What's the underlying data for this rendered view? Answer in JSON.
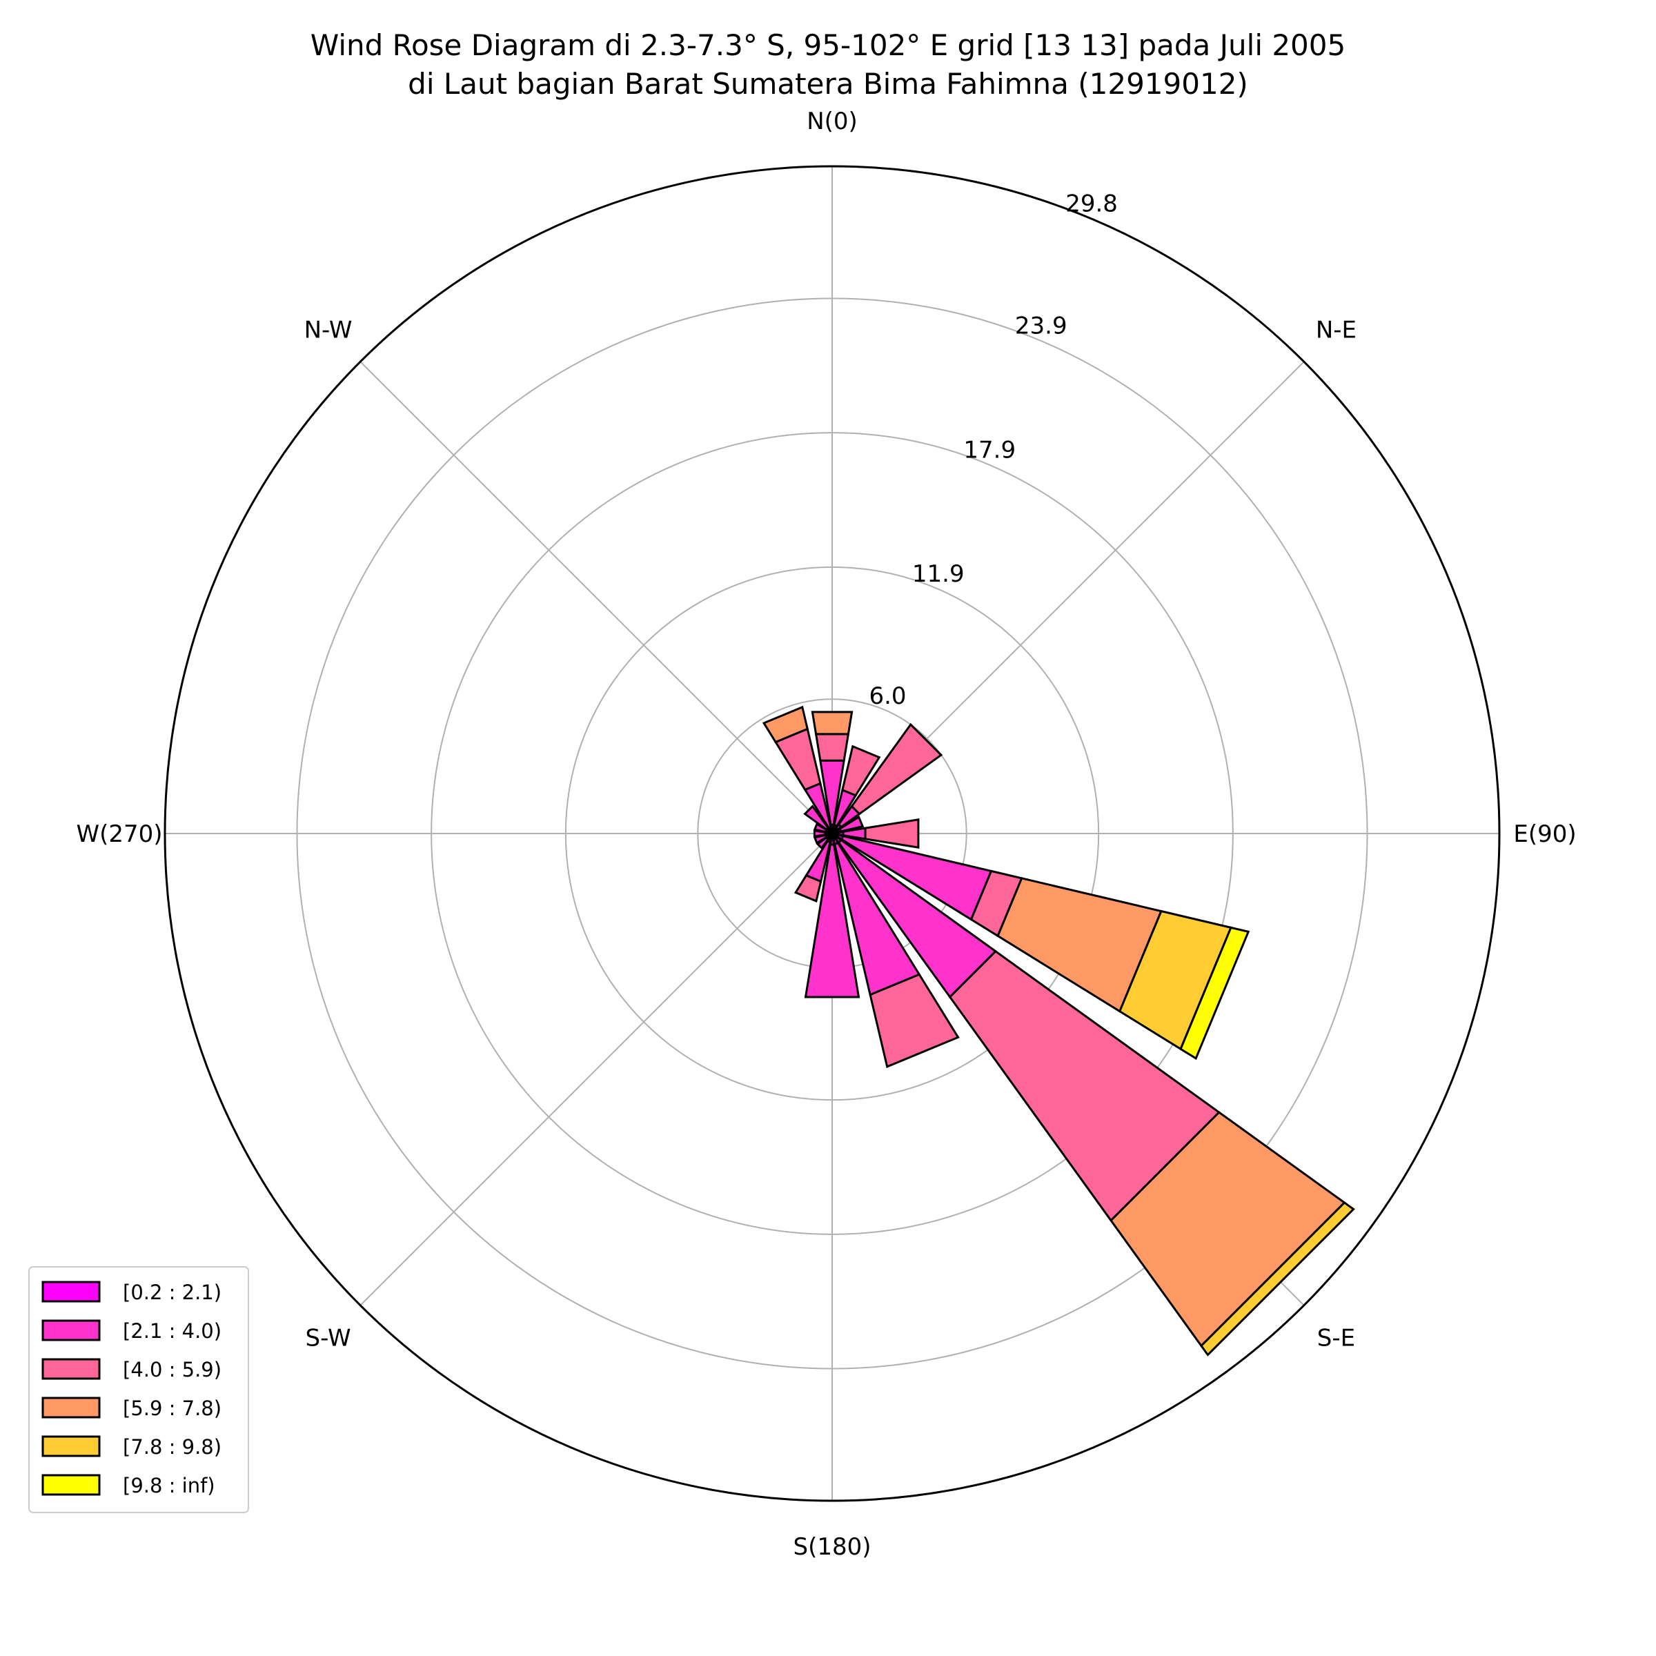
{
  "chart_data": {
    "type": "windrose",
    "title": "Wind Rose Diagram di 2.3-7.3° S, 95-102° E grid [13 13] pada Juli 2005",
    "subtitle": "di Laut bagian Barat Sumatera Bima Fahimna (12919012)",
    "direction_labels": [
      {
        "angle": 0,
        "label": "N(0)"
      },
      {
        "angle": 45,
        "label": "N-E"
      },
      {
        "angle": 90,
        "label": "E(90)"
      },
      {
        "angle": 135,
        "label": "S-E"
      },
      {
        "angle": 180,
        "label": "S(180)"
      },
      {
        "angle": 225,
        "label": "S-W"
      },
      {
        "angle": 270,
        "label": "W(270)"
      },
      {
        "angle": 315,
        "label": "N-W"
      }
    ],
    "radial_ticks": [
      6.0,
      11.9,
      17.9,
      23.9,
      29.8
    ],
    "radial_tick_labels": [
      "6.0",
      "11.9",
      "17.9",
      "23.9",
      "29.8"
    ],
    "rmax": 29.8,
    "grid": true,
    "sector_count": 16,
    "legend_position": "lower-left",
    "bins": [
      {
        "label": "[0.2 : 2.1)",
        "color": "#ff00ff"
      },
      {
        "label": "[2.1 : 4.0)",
        "color": "#ff33cc"
      },
      {
        "label": "[4.0 : 5.9)",
        "color": "#ff6699"
      },
      {
        "label": "[5.9 : 7.8)",
        "color": "#ff9966"
      },
      {
        "label": "[7.8 : 9.8)",
        "color": "#ffcc33"
      },
      {
        "label": "[9.8 : inf)",
        "color": "#ffff00"
      }
    ],
    "sectors": [
      {
        "direction": 0,
        "cumulative": [
          0.4,
          3.3,
          4.5,
          5.5,
          5.5,
          5.5
        ]
      },
      {
        "direction": 22.5,
        "cumulative": [
          0.4,
          2.0,
          4.0,
          4.0,
          4.0,
          4.0
        ]
      },
      {
        "direction": 45,
        "cumulative": [
          0.5,
          1.5,
          6.0,
          6.0,
          6.0,
          6.0
        ]
      },
      {
        "direction": 67.5,
        "cumulative": [
          0.4,
          1.4,
          1.4,
          1.4,
          1.4,
          1.4
        ]
      },
      {
        "direction": 90,
        "cumulative": [
          0.5,
          1.5,
          3.9,
          3.9,
          3.9,
          3.9
        ]
      },
      {
        "direction": 112.5,
        "cumulative": [
          0.5,
          7.3,
          8.7,
          15.1,
          18.3,
          19.1
        ]
      },
      {
        "direction": 135,
        "cumulative": [
          0.5,
          9.0,
          21.3,
          28.2,
          28.7,
          28.7
        ]
      },
      {
        "direction": 157.5,
        "cumulative": [
          0.5,
          7.4,
          10.7,
          10.7,
          10.7,
          10.7
        ]
      },
      {
        "direction": 180,
        "cumulative": [
          0.5,
          7.4,
          7.4,
          7.4,
          7.4,
          7.4
        ]
      },
      {
        "direction": 202.5,
        "cumulative": [
          0.4,
          2.2,
          3.1,
          3.1,
          3.1,
          3.1
        ]
      },
      {
        "direction": 225,
        "cumulative": [
          0.3,
          0.8,
          0.8,
          0.8,
          0.8,
          0.8
        ]
      },
      {
        "direction": 247.5,
        "cumulative": [
          0.3,
          0.8,
          0.8,
          0.8,
          0.8,
          0.8
        ]
      },
      {
        "direction": 270,
        "cumulative": [
          0.3,
          0.8,
          0.8,
          0.8,
          0.8,
          0.8
        ]
      },
      {
        "direction": 292.5,
        "cumulative": [
          0.3,
          0.8,
          0.8,
          0.8,
          0.8,
          0.8
        ]
      },
      {
        "direction": 315,
        "cumulative": [
          0.3,
          1.5,
          1.5,
          1.5,
          1.5,
          1.5
        ]
      },
      {
        "direction": 337.5,
        "cumulative": [
          0.3,
          2.3,
          4.8,
          5.8,
          5.8,
          5.8
        ]
      }
    ]
  }
}
